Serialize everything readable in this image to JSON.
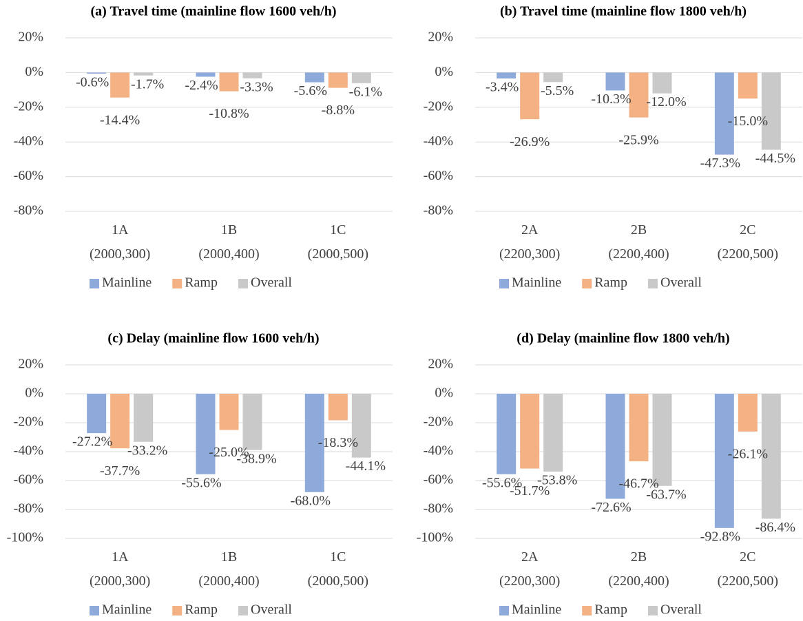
{
  "chart_data": [
    {
      "type": "bar",
      "title": "(a) Travel time (mainline flow 1600 veh/h)",
      "categories": [
        "1A\n(2000,300)",
        "1B\n(2000,400)",
        "1C\n(2000,500)"
      ],
      "series": [
        {
          "name": "Mainline",
          "color": "#8eaadb",
          "values": [
            -0.6,
            -2.4,
            -5.6
          ],
          "value_labels": [
            "-0.6%",
            "-2.4%",
            "-5.6%"
          ]
        },
        {
          "name": "Ramp",
          "color": "#f4b183",
          "values": [
            -14.4,
            -10.8,
            -8.8
          ],
          "value_labels": [
            "-14.4%",
            "-10.8%",
            "-8.8%"
          ]
        },
        {
          "name": "Overall",
          "color": "#c9c9c9",
          "values": [
            -1.7,
            -3.3,
            -6.1
          ],
          "value_labels": [
            "-1.7%",
            "-3.3%",
            "-6.1%"
          ]
        }
      ],
      "ylim": [
        -80,
        20
      ],
      "yticks": [
        {
          "value": -80,
          "label": "-80%"
        },
        {
          "value": -60,
          "label": "-60%"
        },
        {
          "value": -40,
          "label": "-40%"
        },
        {
          "value": -20,
          "label": "-20%"
        },
        {
          "value": 0,
          "label": "0%"
        },
        {
          "value": 20,
          "label": "20%"
        }
      ],
      "grid": true,
      "legend": "bottom"
    },
    {
      "type": "bar",
      "title": "(b) Travel time (mainline flow 1800 veh/h)",
      "categories": [
        "2A\n(2200,300)",
        "2B\n(2200,400)",
        "2C\n(2200,500)"
      ],
      "series": [
        {
          "name": "Mainline",
          "color": "#8eaadb",
          "values": [
            -3.4,
            -10.3,
            -47.3
          ],
          "value_labels": [
            "-3.4%",
            "-10.3%",
            "-47.3%"
          ]
        },
        {
          "name": "Ramp",
          "color": "#f4b183",
          "values": [
            -26.9,
            -25.9,
            -15.0
          ],
          "value_labels": [
            "-26.9%",
            "-25.9%",
            "-15.0%"
          ]
        },
        {
          "name": "Overall",
          "color": "#c9c9c9",
          "values": [
            -5.5,
            -12.0,
            -44.5
          ],
          "value_labels": [
            "-5.5%",
            "-12.0%",
            "-44.5%"
          ]
        }
      ],
      "ylim": [
        -80,
        20
      ],
      "yticks": [
        {
          "value": -80,
          "label": "-80%"
        },
        {
          "value": -60,
          "label": "-60%"
        },
        {
          "value": -40,
          "label": "-40%"
        },
        {
          "value": -20,
          "label": "-20%"
        },
        {
          "value": 0,
          "label": "0%"
        },
        {
          "value": 20,
          "label": "20%"
        }
      ],
      "grid": true,
      "legend": "bottom"
    },
    {
      "type": "bar",
      "title": "(c) Delay (mainline flow 1600 veh/h)",
      "categories": [
        "1A\n(2000,300)",
        "1B\n(2000,400)",
        "1C\n(2000,500)"
      ],
      "series": [
        {
          "name": "Mainline",
          "color": "#8eaadb",
          "values": [
            -27.2,
            -55.6,
            -68.0
          ],
          "value_labels": [
            "-27.2%",
            "-55.6%",
            "-68.0%"
          ]
        },
        {
          "name": "Ramp",
          "color": "#f4b183",
          "values": [
            -37.7,
            -25.0,
            -18.3
          ],
          "value_labels": [
            "-37.7%",
            "-25.0%",
            "-18.3%"
          ]
        },
        {
          "name": "Overall",
          "color": "#c9c9c9",
          "values": [
            -33.2,
            -38.9,
            -44.1
          ],
          "value_labels": [
            "-33.2%",
            "-38.9%",
            "-44.1%"
          ]
        }
      ],
      "ylim": [
        -100,
        20
      ],
      "yticks": [
        {
          "value": -100,
          "label": "-100%"
        },
        {
          "value": -80,
          "label": "-80%"
        },
        {
          "value": -60,
          "label": "-60%"
        },
        {
          "value": -40,
          "label": "-40%"
        },
        {
          "value": -20,
          "label": "-20%"
        },
        {
          "value": 0,
          "label": "0%"
        },
        {
          "value": 20,
          "label": "20%"
        }
      ],
      "grid": true,
      "legend": "bottom"
    },
    {
      "type": "bar",
      "title": "(d) Delay (mainline flow 1800 veh/h)",
      "categories": [
        "2A\n(2200,300)",
        "2B\n(2200,400)",
        "2C\n(2200,500)"
      ],
      "series": [
        {
          "name": "Mainline",
          "color": "#8eaadb",
          "values": [
            -55.6,
            -72.6,
            -92.8
          ],
          "value_labels": [
            "-55.6%",
            "-72.6%",
            "-92.8%"
          ]
        },
        {
          "name": "Ramp",
          "color": "#f4b183",
          "values": [
            -51.7,
            -46.7,
            -26.1
          ],
          "value_labels": [
            "-51.7%",
            "-46.7%",
            "-26.1%"
          ]
        },
        {
          "name": "Overall",
          "color": "#c9c9c9",
          "values": [
            -53.8,
            -63.7,
            -86.4
          ],
          "value_labels": [
            "-53.8%",
            "-63.7%",
            "-86.4%"
          ]
        }
      ],
      "ylim": [
        -100,
        20
      ],
      "yticks": [
        {
          "value": -100,
          "label": "-100%"
        },
        {
          "value": -80,
          "label": "-80%"
        },
        {
          "value": -60,
          "label": "-60%"
        },
        {
          "value": -40,
          "label": "-40%"
        },
        {
          "value": -20,
          "label": "-20%"
        },
        {
          "value": 0,
          "label": "0%"
        },
        {
          "value": 20,
          "label": "20%"
        }
      ],
      "grid": true,
      "legend": "bottom"
    }
  ]
}
